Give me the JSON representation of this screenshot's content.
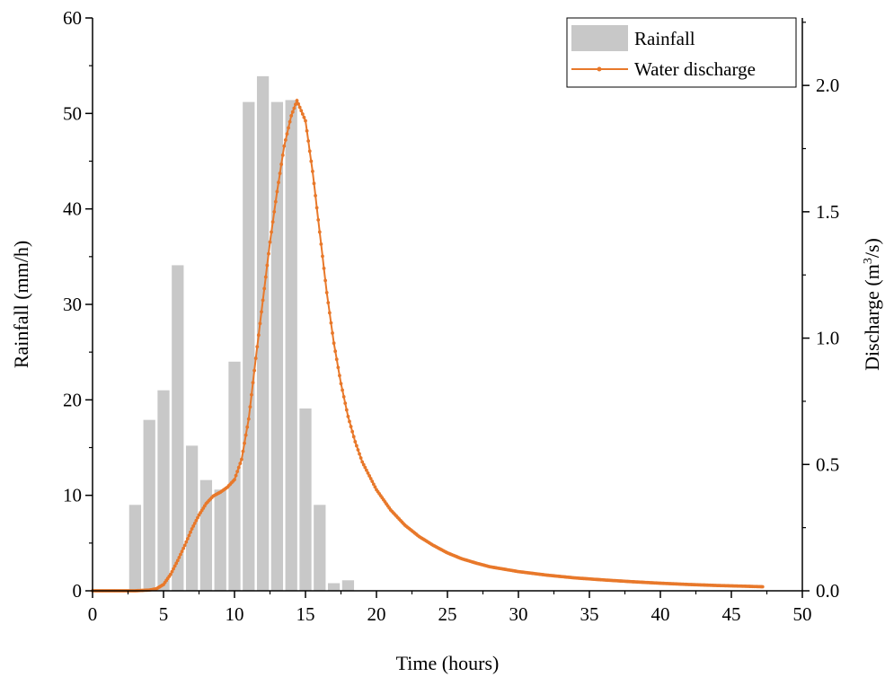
{
  "chart_data": {
    "type": "bar+line",
    "xlabel": "Time (hours)",
    "ylabel_left": "Rainfall (mm/h)",
    "ylabel_right_prefix": "Discharge (m",
    "ylabel_right_sup": "3",
    "ylabel_right_suffix": "/s)",
    "xlim": [
      0,
      50
    ],
    "ylim_left": [
      0,
      60
    ],
    "ylim_right": [
      0,
      2.267
    ],
    "x_ticks": [
      0,
      5,
      10,
      15,
      20,
      25,
      30,
      35,
      40,
      45,
      50
    ],
    "y_left_ticks": [
      0,
      10,
      20,
      30,
      40,
      50,
      60
    ],
    "y_right_ticks": [
      "0.0",
      "0.5",
      "1.0",
      "1.5",
      "2.0"
    ],
    "legend_position": "top-right",
    "grid": false,
    "series": [
      {
        "name": "Rainfall",
        "type": "bar",
        "axis": "left",
        "color": "#c8c8c8",
        "x": [
          3,
          4,
          5,
          6,
          7,
          8,
          9,
          10,
          11,
          12,
          13,
          14,
          15,
          16,
          17,
          18
        ],
        "values": [
          9.0,
          17.9,
          21.0,
          34.1,
          15.2,
          11.6,
          10.6,
          24.0,
          51.2,
          53.9,
          51.2,
          51.4,
          19.1,
          9.0,
          0.8,
          1.1
        ]
      },
      {
        "name": "Water discharge",
        "type": "line",
        "axis": "right",
        "color": "#e8782a",
        "x": [
          0,
          3,
          4,
          4.5,
          5,
          5.5,
          6,
          6.5,
          7,
          7.5,
          8,
          8.5,
          9,
          9.5,
          10,
          10.5,
          11,
          11.5,
          12,
          12.5,
          13,
          13.5,
          14,
          14.4,
          15,
          15.5,
          16,
          16.5,
          17,
          17.5,
          18,
          18.5,
          19,
          20,
          21,
          22,
          23,
          24,
          25,
          26,
          27,
          28,
          30,
          32,
          34,
          36,
          38,
          40,
          42,
          44,
          46,
          47.2
        ],
        "values": [
          0.0,
          0.0,
          0.003,
          0.008,
          0.025,
          0.065,
          0.12,
          0.18,
          0.245,
          0.3,
          0.345,
          0.375,
          0.39,
          0.41,
          0.44,
          0.52,
          0.68,
          0.92,
          1.15,
          1.38,
          1.58,
          1.76,
          1.88,
          1.94,
          1.86,
          1.66,
          1.42,
          1.18,
          0.98,
          0.82,
          0.69,
          0.59,
          0.51,
          0.4,
          0.32,
          0.26,
          0.215,
          0.18,
          0.15,
          0.127,
          0.11,
          0.095,
          0.076,
          0.062,
          0.051,
          0.043,
          0.036,
          0.03,
          0.025,
          0.021,
          0.018,
          0.016
        ]
      }
    ]
  }
}
